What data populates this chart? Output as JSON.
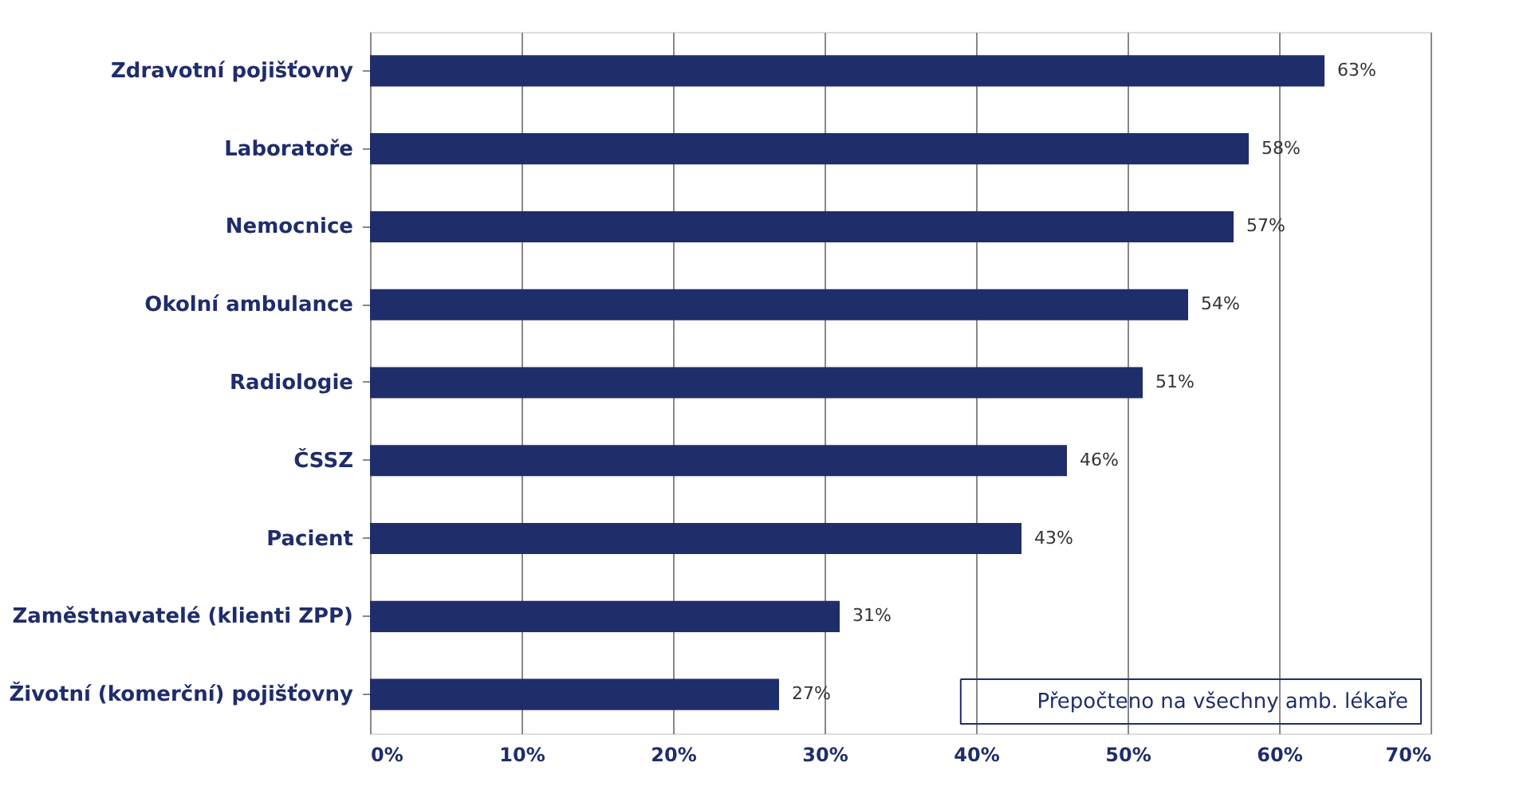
{
  "chart_data": {
    "type": "bar",
    "orientation": "horizontal",
    "categories": [
      "Zdravotní pojišťovny",
      "Laboratoře",
      "Nemocnice",
      "Okolní ambulance",
      "Radiologie",
      "ČSSZ",
      "Pacient",
      "Zaměstnavatelé (klienti ZPP)",
      "Životní (komerční) pojišťovny"
    ],
    "values": [
      63,
      58,
      57,
      54,
      51,
      46,
      43,
      31,
      27
    ],
    "value_labels": [
      "63%",
      "58%",
      "57%",
      "54%",
      "51%",
      "46%",
      "43%",
      "31%",
      "27%"
    ],
    "color": "#1f2d6b",
    "xlim": [
      0,
      70
    ],
    "xticks": [
      {
        "value": 0,
        "label": "0%"
      },
      {
        "value": 10,
        "label": "10%"
      },
      {
        "value": 20,
        "label": "20%"
      },
      {
        "value": 30,
        "label": "30%"
      },
      {
        "value": 40,
        "label": "40%"
      },
      {
        "value": 50,
        "label": "50%"
      },
      {
        "value": 60,
        "label": "60%"
      },
      {
        "value": 70,
        "label": "70%"
      }
    ],
    "grid": "x",
    "annotations": [
      "Přepočteno na všechny amb. lékaře"
    ]
  }
}
